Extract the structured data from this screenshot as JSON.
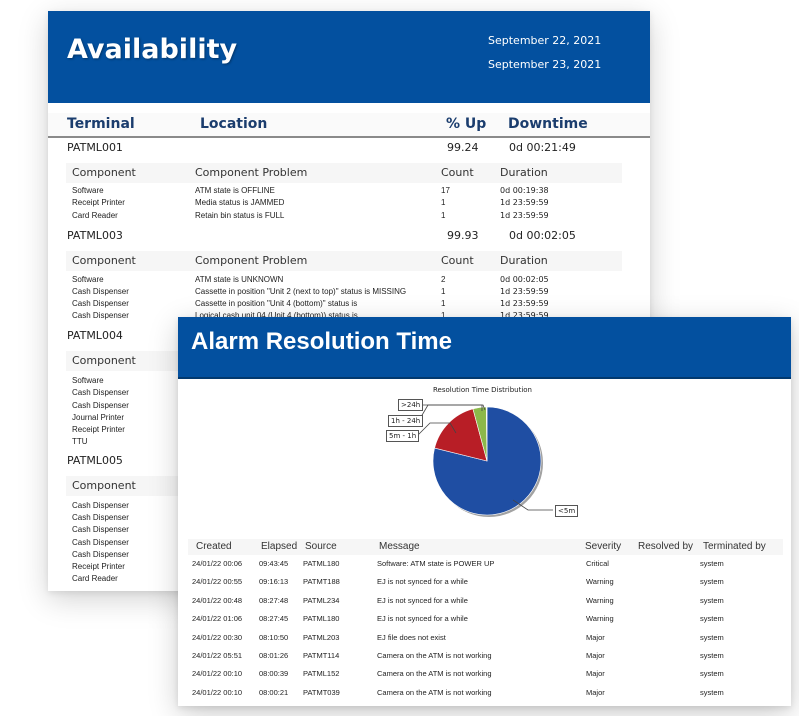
{
  "availability": {
    "title": "Availability",
    "dates": [
      "September 22, 2021",
      "September 23, 2021"
    ],
    "columns": {
      "terminal": "Terminal",
      "location": "Location",
      "pct_up": "% Up",
      "downtime": "Downtime"
    },
    "component_columns": {
      "component": "Component",
      "problem": "Component Problem",
      "count": "Count",
      "duration": "Duration"
    },
    "terminals": [
      {
        "id": "PATML001",
        "pct_up": "99.24",
        "downtime": "0d 00:21:49",
        "components": [
          {
            "component": "Software",
            "problem": "ATM state is OFFLINE",
            "count": "17",
            "duration": "0d 00:19:38"
          },
          {
            "component": "Receipt Printer",
            "problem": "Media status is JAMMED",
            "count": "1",
            "duration": "1d 23:59:59"
          },
          {
            "component": "Card Reader",
            "problem": "Retain bin status is FULL",
            "count": "1",
            "duration": "1d 23:59:59"
          }
        ]
      },
      {
        "id": "PATML003",
        "pct_up": "99.93",
        "downtime": "0d 00:02:05",
        "components": [
          {
            "component": "Software",
            "problem": "ATM state is UNKNOWN",
            "count": "2",
            "duration": "0d 00:02:05"
          },
          {
            "component": "Cash Dispenser",
            "problem": "Cassette in position \"Unit 2 (next to top)\" status is MISSING",
            "count": "1",
            "duration": "1d 23:59:59"
          },
          {
            "component": "Cash Dispenser",
            "problem": "Cassette in position \"Unit 4 (bottom)\" status is",
            "count": "1",
            "duration": "1d 23:59:59"
          },
          {
            "component": "Cash Dispenser",
            "problem": "Logical cash unit 04 (Unit 4 (bottom)) status is",
            "count": "1",
            "duration": "1d 23:59:59"
          }
        ]
      },
      {
        "id": "PATML004",
        "components": [
          {
            "component": "Software"
          },
          {
            "component": "Cash Dispenser"
          },
          {
            "component": "Cash Dispenser"
          },
          {
            "component": "Journal Printer"
          },
          {
            "component": "Receipt Printer"
          },
          {
            "component": "TTU"
          }
        ]
      },
      {
        "id": "PATML005",
        "components": [
          {
            "component": "Cash Dispenser"
          },
          {
            "component": "Cash Dispenser"
          },
          {
            "component": "Cash Dispenser"
          },
          {
            "component": "Cash Dispenser"
          },
          {
            "component": "Cash Dispenser"
          },
          {
            "component": "Receipt Printer"
          },
          {
            "component": "Card Reader"
          }
        ]
      }
    ]
  },
  "alarm": {
    "title": "Alarm Resolution Time",
    "columns": {
      "created": "Created",
      "elapsed": "Elapsed",
      "source": "Source",
      "message": "Message",
      "severity": "Severity",
      "resolved_by": "Resolved by",
      "terminated_by": "Terminated by"
    },
    "rows": [
      {
        "created": "24/01/22 00:06",
        "elapsed": "09:43:45",
        "source": "PATML180",
        "message": "Software: ATM state is POWER UP",
        "severity": "Critical",
        "resolved_by": "",
        "terminated_by": "system"
      },
      {
        "created": "24/01/22 00:55",
        "elapsed": "09:16:13",
        "source": "PATMT188",
        "message": "EJ is not synced for a while",
        "severity": "Warning",
        "resolved_by": "",
        "terminated_by": "system"
      },
      {
        "created": "24/01/22 00:48",
        "elapsed": "08:27:48",
        "source": "PATML234",
        "message": "EJ is not synced for a while",
        "severity": "Warning",
        "resolved_by": "",
        "terminated_by": "system"
      },
      {
        "created": "24/01/22 01:06",
        "elapsed": "08:27:45",
        "source": "PATML180",
        "message": "EJ is not synced for a while",
        "severity": "Warning",
        "resolved_by": "",
        "terminated_by": "system"
      },
      {
        "created": "24/01/22 00:30",
        "elapsed": "08:10:50",
        "source": "PATML203",
        "message": "EJ file does not exist",
        "severity": "Major",
        "resolved_by": "",
        "terminated_by": "system"
      },
      {
        "created": "24/01/22 05:51",
        "elapsed": "08:01:26",
        "source": "PATMT114",
        "message": "Camera on the ATM is not working",
        "severity": "Major",
        "resolved_by": "",
        "terminated_by": "system"
      },
      {
        "created": "24/01/22 00:10",
        "elapsed": "08:00:39",
        "source": "PATML152",
        "message": "Camera on the ATM is not working",
        "severity": "Major",
        "resolved_by": "",
        "terminated_by": "system"
      },
      {
        "created": "24/01/22 00:10",
        "elapsed": "08:00:21",
        "source": "PATMT039",
        "message": "Camera on the ATM is not working",
        "severity": "Major",
        "resolved_by": "",
        "terminated_by": "system"
      }
    ]
  },
  "colors": {
    "header_blue": "#03509f",
    "pie_blue": "#1f4ea3",
    "pie_red": "#b81e26",
    "pie_green": "#8cb84a",
    "column_head_text": "#1b3d6e"
  },
  "chart_data": {
    "type": "pie",
    "title": "Resolution Time Distribution",
    "categories": [
      "<5m",
      "5m - 1h",
      "1h - 24h",
      ">24h"
    ],
    "values": [
      79,
      17,
      4,
      0.2
    ],
    "colors": [
      "#1f4ea3",
      "#b81e26",
      "#8cb84a",
      "#cccccc"
    ],
    "legend": "callout labels"
  }
}
